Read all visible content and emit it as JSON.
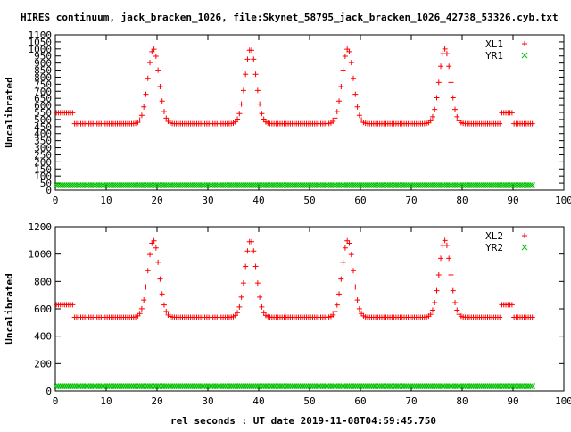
{
  "page": {
    "title": "HIRES continuum, jack_bracken_1026, file:Skynet_58795_jack_bracken_1026_42738_53326.cyb.txt",
    "xlabel": "rel seconds : UT date 2019-11-08T04:59:45.750"
  },
  "colors": {
    "red": "#ff0000",
    "green": "#00c000",
    "axis": "#000000"
  },
  "chart_data": [
    {
      "type": "scatter",
      "title": "",
      "xlabel": "",
      "ylabel": "Uncalibrated",
      "xlim": [
        0,
        100
      ],
      "ylim": [
        0,
        1100
      ],
      "x_ticks": [
        0,
        10,
        20,
        30,
        40,
        50,
        60,
        70,
        80,
        90,
        100
      ],
      "y_ticks": [
        0,
        50,
        100,
        150,
        200,
        250,
        300,
        350,
        400,
        450,
        500,
        550,
        600,
        650,
        700,
        750,
        800,
        850,
        900,
        950,
        1000,
        1050,
        1100
      ],
      "legend_position": "top-right",
      "grid": false,
      "series": [
        {
          "name": "XL1",
          "marker": "plus",
          "color": "#ff0000",
          "baseline": 470,
          "x_range": [
            0.2,
            93.8
          ],
          "step": 0.4,
          "plateaus": [
            {
              "x": [
                0.2,
                3.4
              ],
              "value": 548
            },
            {
              "x": [
                87.8,
                90.2
              ],
              "value": 548
            }
          ],
          "peaks": [
            {
              "x": 19.3,
              "value": 1000,
              "width": 1.1
            },
            {
              "x": 38.4,
              "value": 1000,
              "width": 1.1
            },
            {
              "x": 57.5,
              "value": 1000,
              "width": 1.1
            },
            {
              "x": 76.6,
              "value": 1000,
              "width": 1.1
            }
          ]
        },
        {
          "name": "YR1",
          "marker": "x",
          "color": "#00c000",
          "baseline": 35,
          "x_range": [
            0.2,
            93.8
          ],
          "step": 0.4,
          "plateaus": [],
          "peaks": []
        }
      ]
    },
    {
      "type": "scatter",
      "title": "",
      "xlabel": "rel seconds : UT date 2019-11-08T04:59:45.750",
      "ylabel": "Uncalibrated",
      "xlim": [
        0,
        100
      ],
      "ylim": [
        0,
        1200
      ],
      "x_ticks": [
        0,
        10,
        20,
        30,
        40,
        50,
        60,
        70,
        80,
        90,
        100
      ],
      "y_ticks": [
        0,
        200,
        400,
        600,
        800,
        1000,
        1200
      ],
      "legend_position": "top-right",
      "grid": false,
      "series": [
        {
          "name": "XL2",
          "marker": "plus",
          "color": "#ff0000",
          "baseline": 538,
          "x_range": [
            0.2,
            93.8
          ],
          "step": 0.4,
          "plateaus": [
            {
              "x": [
                0.2,
                3.4
              ],
              "value": 630
            },
            {
              "x": [
                87.8,
                90.2
              ],
              "value": 630
            }
          ],
          "peaks": [
            {
              "x": 19.3,
              "value": 1100,
              "width": 1.1
            },
            {
              "x": 38.4,
              "value": 1100,
              "width": 1.1
            },
            {
              "x": 57.5,
              "value": 1100,
              "width": 1.1
            },
            {
              "x": 76.6,
              "value": 1100,
              "width": 1.1
            }
          ]
        },
        {
          "name": "YR2",
          "marker": "x",
          "color": "#00c000",
          "baseline": 35,
          "x_range": [
            0.2,
            93.8
          ],
          "step": 0.4,
          "plateaus": [],
          "peaks": []
        }
      ]
    }
  ]
}
